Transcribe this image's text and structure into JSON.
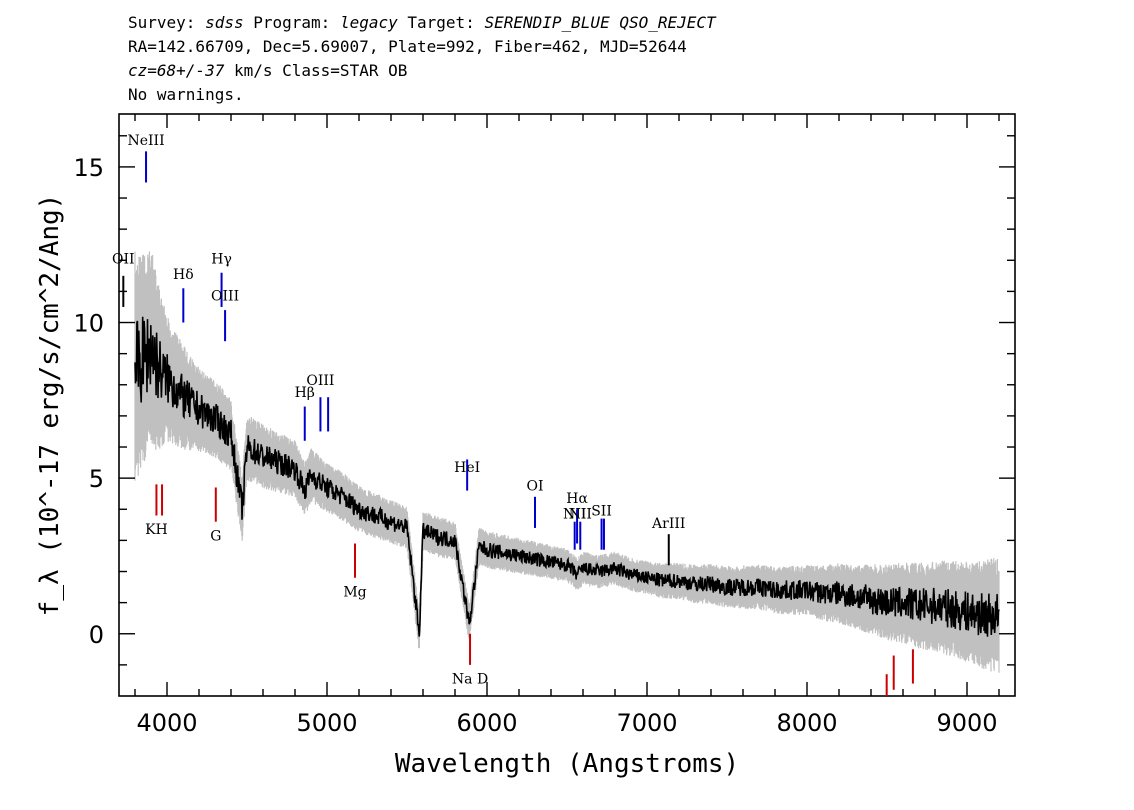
{
  "header": {
    "line1": {
      "survey_label": "Survey:",
      "survey": "sdss",
      "program_label": "Program:",
      "program": "legacy",
      "target_label": "Target:",
      "target": "SERENDIP_BLUE QSO_REJECT"
    },
    "line2": "RA=142.66709, Dec=5.69007, Plate=992, Fiber=462, MJD=52644",
    "line3": {
      "cz": "cz=68+/-37",
      "rest": "km/s Class=STAR OB"
    },
    "line4": "No warnings."
  },
  "colors": {
    "flux": "#000000",
    "error": "#c0c0c0",
    "emission_line": "#0000cc",
    "absorption_line": "#cc0000",
    "axis": "#000000"
  },
  "chart_data": {
    "type": "line",
    "xlabel": "Wavelength (Angstroms)",
    "ylabel": "f_λ (10^-17 erg/s/cm^2/Ang)",
    "xlim": [
      3700,
      9300
    ],
    "ylim": [
      -2,
      16.7
    ],
    "xticks": [
      4000,
      5000,
      6000,
      7000,
      8000,
      9000
    ],
    "yticks": [
      0,
      5,
      10,
      15
    ],
    "series": [
      {
        "role": "flux",
        "x": [
          3800,
          3850,
          3900,
          3950,
          4000,
          4050,
          4100,
          4150,
          4200,
          4300,
          4400,
          4470,
          4500,
          4600,
          4700,
          4800,
          4861,
          4900,
          5000,
          5100,
          5200,
          5300,
          5400,
          5500,
          5577,
          5600,
          5700,
          5800,
          5890,
          5950,
          6000,
          6100,
          6200,
          6300,
          6400,
          6500,
          6563,
          6600,
          6700,
          6800,
          6900,
          7000,
          7100,
          7200,
          7300,
          7400,
          7500,
          7600,
          7700,
          7800,
          7900,
          8000,
          8100,
          8200,
          8300,
          8400,
          8500,
          8600,
          8700,
          8800,
          8900,
          9000,
          9100,
          9200
        ],
        "y": [
          8.5,
          8.8,
          9.2,
          8.5,
          8.2,
          7.9,
          7.6,
          7.4,
          7.2,
          6.9,
          6.4,
          4.0,
          6.0,
          5.7,
          5.5,
          5.3,
          4.6,
          5.1,
          4.7,
          4.4,
          4.0,
          3.8,
          3.6,
          3.4,
          0.0,
          3.3,
          3.1,
          3.0,
          0.3,
          2.8,
          2.7,
          2.6,
          2.5,
          2.4,
          2.3,
          2.2,
          1.9,
          2.1,
          2.0,
          2.1,
          1.9,
          1.8,
          1.7,
          1.7,
          1.6,
          1.6,
          1.5,
          1.5,
          1.5,
          1.4,
          1.4,
          1.4,
          1.3,
          1.3,
          1.2,
          1.1,
          1.0,
          1.0,
          0.9,
          0.9,
          0.8,
          0.7,
          0.6,
          0.6
        ]
      },
      {
        "role": "error",
        "x": [
          3800,
          3900,
          4000,
          4200,
          4500,
          5000,
          5500,
          6000,
          6500,
          7000,
          7500,
          8000,
          8500,
          9000,
          9200
        ],
        "y": [
          2.8,
          2.4,
          1.5,
          1.0,
          0.8,
          0.6,
          0.5,
          0.45,
          0.4,
          0.4,
          0.5,
          0.6,
          0.9,
          1.2,
          1.4
        ]
      }
    ],
    "emission_lines": [
      {
        "label": "OII",
        "x": 3727,
        "y0": 10.5,
        "y1": 11.5,
        "label_y": 11.9,
        "color": "black"
      },
      {
        "label": "NeIII",
        "x": 3869,
        "y0": 14.5,
        "y1": 15.5,
        "label_y": 15.7
      },
      {
        "label": "Hδ",
        "x": 4102,
        "y0": 10.0,
        "y1": 11.1,
        "label_y": 11.4
      },
      {
        "label": "Hγ",
        "x": 4341,
        "y0": 10.5,
        "y1": 11.6,
        "label_y": 11.9
      },
      {
        "label": "OIII",
        "x": 4363,
        "y0": 9.4,
        "y1": 10.4,
        "label_y": 10.7
      },
      {
        "label": "Hβ",
        "x": 4861,
        "y0": 6.2,
        "y1": 7.3,
        "label_y": 7.6
      },
      {
        "label": "OIII",
        "x": 4959,
        "y0": 6.5,
        "y1": 7.6,
        "label_y": 8.0
      },
      {
        "label": "",
        "x": 5007,
        "y0": 6.5,
        "y1": 7.6
      },
      {
        "label": "HeI",
        "x": 5876,
        "y0": 4.6,
        "y1": 5.6,
        "label_y": 5.2
      },
      {
        "label": "OI",
        "x": 6300,
        "y0": 3.4,
        "y1": 4.4,
        "label_y": 4.6
      },
      {
        "label": "NII",
        "x": 6548,
        "y0": 2.7,
        "y1": 3.6,
        "label_y": 3.7
      },
      {
        "label": "Hα",
        "x": 6563,
        "y0": 2.9,
        "y1": 4.0,
        "label_y": 4.2
      },
      {
        "label": "NII",
        "x": 6583,
        "y0": 2.7,
        "y1": 3.6,
        "label_y": 3.7
      },
      {
        "label": "SII",
        "x": 6716,
        "y0": 2.7,
        "y1": 3.7,
        "label_y": 3.8
      },
      {
        "label": "",
        "x": 6731,
        "y0": 2.7,
        "y1": 3.7
      },
      {
        "label": "ArIII",
        "x": 7136,
        "y0": 2.2,
        "y1": 3.2,
        "label_y": 3.4,
        "color": "black"
      }
    ],
    "absorption_lines": [
      {
        "label": "KH",
        "x": 3934,
        "y0": 4.8,
        "y1": 3.8,
        "label_y": 3.2
      },
      {
        "label": "",
        "x": 3969,
        "y0": 4.8,
        "y1": 3.8
      },
      {
        "label": "G",
        "x": 4305,
        "y0": 4.7,
        "y1": 3.6,
        "label_y": 3.0
      },
      {
        "label": "Mg",
        "x": 5175,
        "y0": 2.9,
        "y1": 1.8,
        "label_y": 1.2
      },
      {
        "label": "Na D",
        "x": 5894,
        "y0": 0.0,
        "y1": -1.0,
        "label_y": -1.6
      },
      {
        "label": "",
        "x": 8498,
        "y0": -1.3,
        "y1": -2.0
      },
      {
        "label": "",
        "x": 8542,
        "y0": -0.7,
        "y1": -1.8
      },
      {
        "label": "",
        "x": 8662,
        "y0": -0.5,
        "y1": -1.6
      }
    ]
  }
}
